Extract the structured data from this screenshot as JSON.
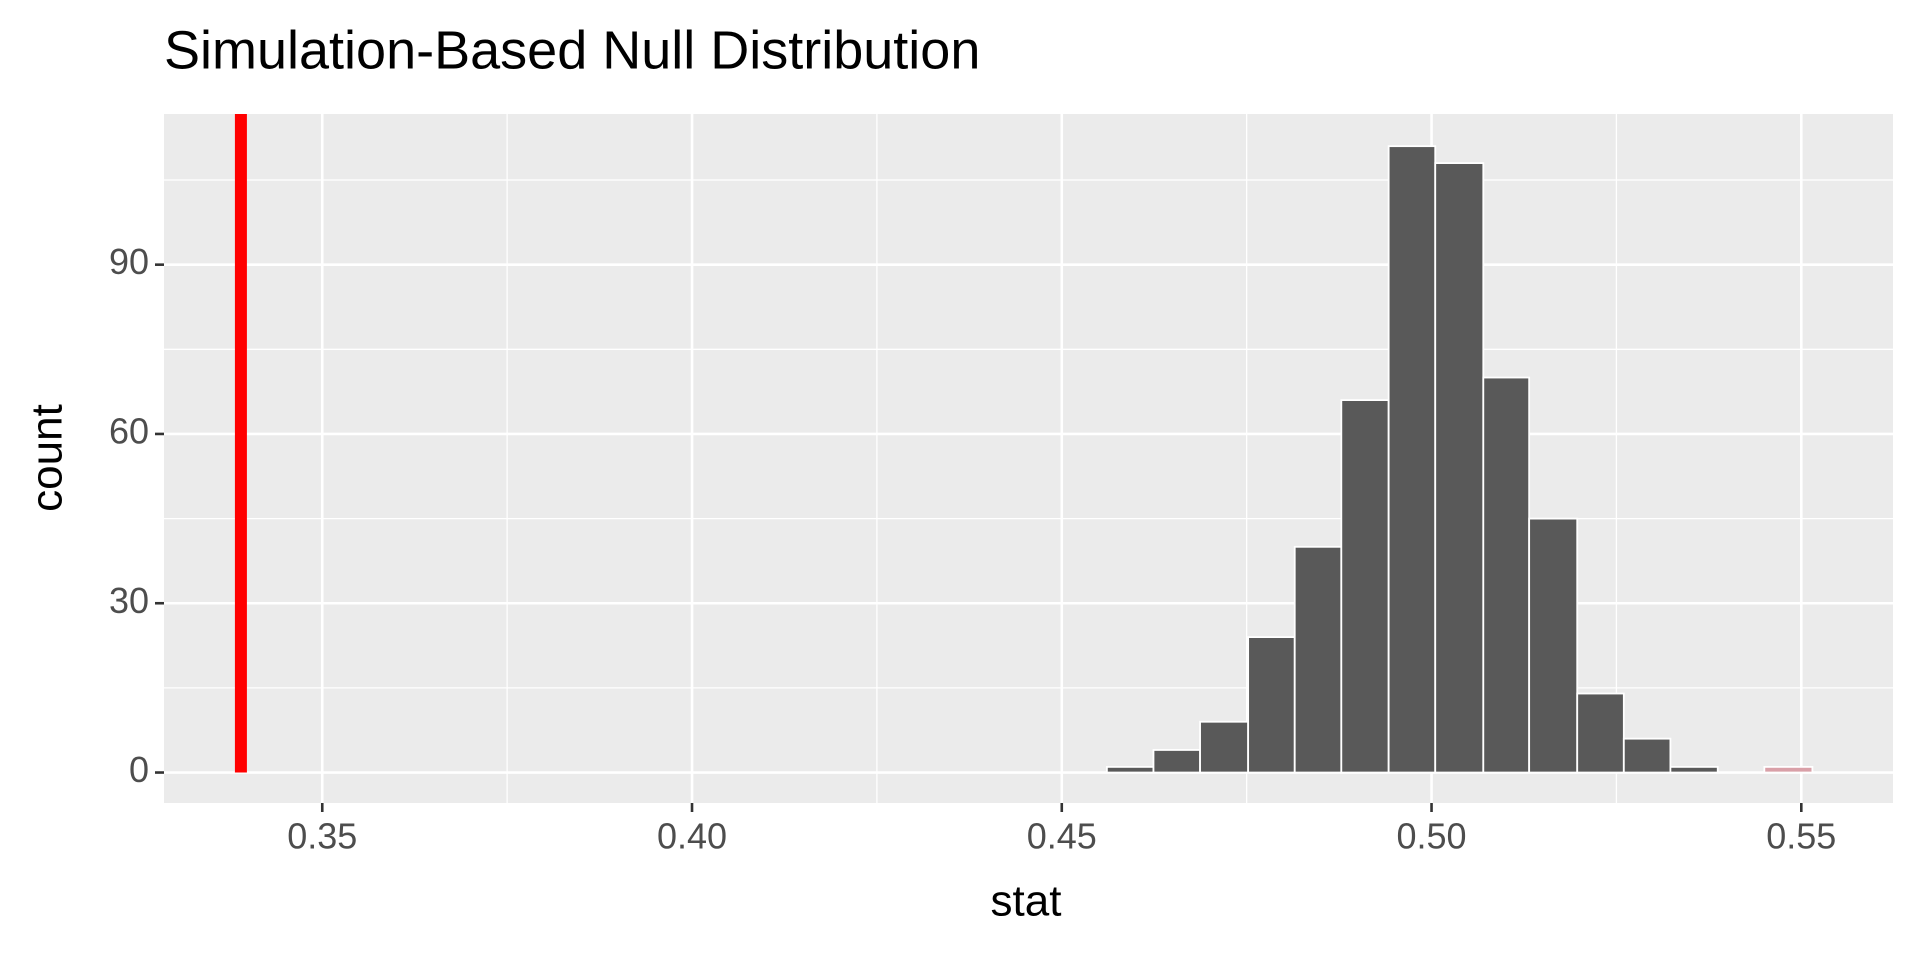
{
  "chart_data": {
    "type": "histogram",
    "title": "Simulation-Based Null Distribution",
    "x_label": "stat",
    "y_label": "count",
    "bins": [
      0.4561,
      0.4624,
      0.4687,
      0.4752,
      0.4815,
      0.4878,
      0.4942,
      0.5005,
      0.507,
      0.5132,
      0.5197,
      0.526,
      0.5323,
      0.5387,
      0.545,
      0.5515
    ],
    "counts": [
      1,
      4,
      9,
      24,
      40,
      66,
      111,
      108,
      70,
      45,
      14,
      6,
      1,
      0,
      1
    ],
    "colors": [
      "#595959",
      "#595959",
      "#595959",
      "#595959",
      "#595959",
      "#595959",
      "#595959",
      "#595959",
      "#595959",
      "#595959",
      "#595959",
      "#595959",
      "#595959",
      "#595959",
      "#d9a0a8"
    ],
    "vline": {
      "value": 0.339,
      "color": "#ff0000"
    },
    "xlim": [
      0.3286,
      0.5624
    ],
    "ylim": [
      -5.4,
      116.7
    ],
    "xticks": [
      {
        "value": 0.35,
        "label": "0.35"
      },
      {
        "value": 0.4,
        "label": "0.40"
      },
      0.45,
      {
        "value": 0.5,
        "label": "0.50"
      },
      0.55
    ],
    "yticks": [
      0,
      30,
      60,
      90
    ],
    "xminor": [
      0.375,
      0.425,
      0.475,
      0.525
    ],
    "yminor": [
      15,
      45,
      75,
      105
    ],
    "grid": true
  }
}
